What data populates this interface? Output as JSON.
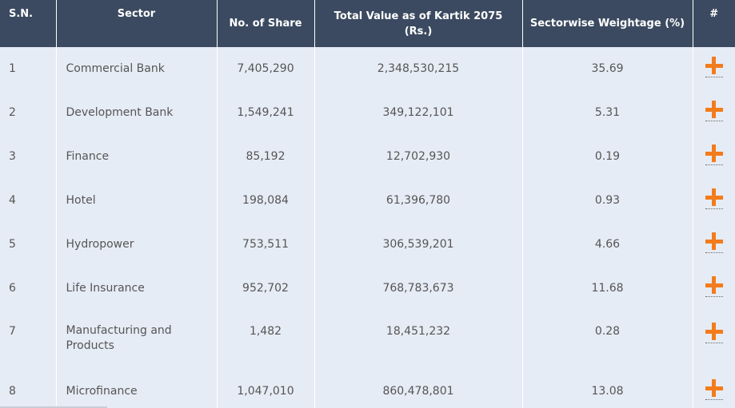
{
  "table": {
    "headers": {
      "sn": "S.N.",
      "sector": "Sector",
      "shares": "No. of Share",
      "value": "Total Value as of Kartik 2075 (Rs.)",
      "weight": "Sectorwise Weightage (%)",
      "action": "#"
    },
    "rows": [
      {
        "sn": "1",
        "sector": "Commercial Bank",
        "shares": "7,405,290",
        "value": "2,348,530,215",
        "weight": "35.69"
      },
      {
        "sn": "2",
        "sector": "Development Bank",
        "shares": "1,549,241",
        "value": "349,122,101",
        "weight": "5.31"
      },
      {
        "sn": "3",
        "sector": "Finance",
        "shares": "85,192",
        "value": "12,702,930",
        "weight": "0.19"
      },
      {
        "sn": "4",
        "sector": "Hotel",
        "shares": "198,084",
        "value": "61,396,780",
        "weight": "0.93"
      },
      {
        "sn": "5",
        "sector": "Hydropower",
        "shares": "753,511",
        "value": "306,539,201",
        "weight": "4.66"
      },
      {
        "sn": "6",
        "sector": "Life Insurance",
        "shares": "952,702",
        "value": "768,783,673",
        "weight": "11.68"
      },
      {
        "sn": "7",
        "sector": "Manufacturing and Products",
        "shares": "1,482",
        "value": "18,451,232",
        "weight": "0.28"
      },
      {
        "sn": "8",
        "sector": "Microfinance",
        "shares": "1,047,010",
        "value": "860,478,801",
        "weight": "13.08"
      }
    ],
    "action_icon": "plus-icon"
  },
  "colors": {
    "header_bg": "#3b4a60",
    "row_bg": "#e6ecf5",
    "accent": "#f27c1c"
  }
}
